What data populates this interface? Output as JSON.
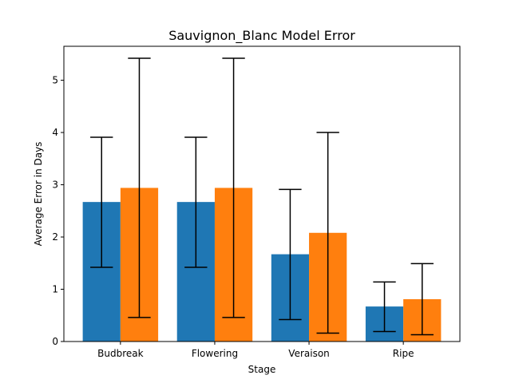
{
  "chart_data": {
    "type": "bar",
    "title": "Sauvignon_Blanc Model Error",
    "xlabel": "Stage",
    "ylabel": "Average Error in Days",
    "categories": [
      "Budbreak",
      "Flowering",
      "Veraison",
      "Ripe"
    ],
    "ylim": [
      0,
      5.65
    ],
    "yticks": [
      "0",
      "1",
      "2",
      "3",
      "4",
      "5"
    ],
    "grid": false,
    "legend": "none",
    "series": [
      {
        "color": "#1f77b4",
        "values": [
          2.67,
          2.67,
          1.67,
          0.67
        ],
        "err_low": [
          1.42,
          1.42,
          0.42,
          0.19
        ],
        "err_high": [
          3.91,
          3.91,
          2.91,
          1.14
        ]
      },
      {
        "color": "#ff7f0e",
        "values": [
          2.94,
          2.94,
          2.08,
          0.81
        ],
        "err_low": [
          0.46,
          0.46,
          0.16,
          0.13
        ],
        "err_high": [
          5.42,
          5.42,
          4.0,
          1.49
        ]
      }
    ]
  }
}
